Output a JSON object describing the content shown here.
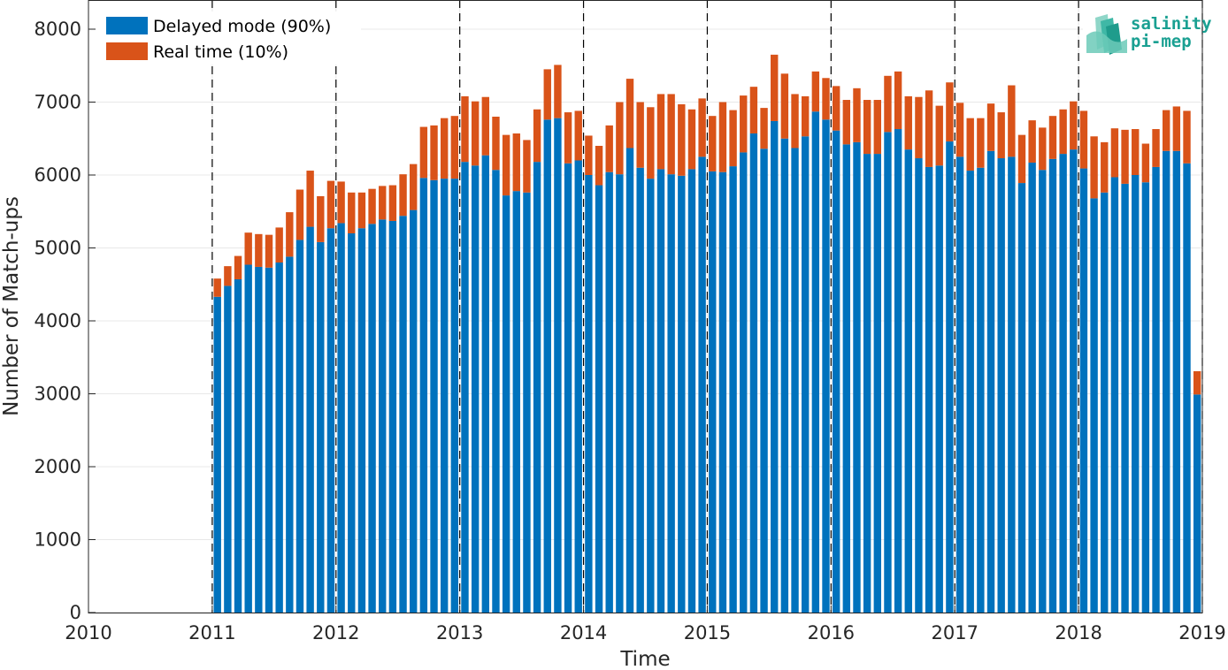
{
  "chart_data": {
    "type": "bar",
    "stacked": true,
    "title": "",
    "xlabel": "Time",
    "ylabel": "Number of Match-ups",
    "xlim": [
      "2010-01",
      "2019-01"
    ],
    "ylim": [
      0,
      8400
    ],
    "x_ticks": [
      "2010",
      "2011",
      "2012",
      "2013",
      "2014",
      "2015",
      "2016",
      "2017",
      "2018",
      "2019"
    ],
    "y_ticks": [
      "0",
      "1000",
      "2000",
      "3000",
      "4000",
      "5000",
      "6000",
      "7000",
      "8000"
    ],
    "grid": true,
    "year_separators": "dashed vertical lines at each January, 2011-2019",
    "legend_position": "top-left",
    "months": [
      "2011-01",
      "2011-02",
      "2011-03",
      "2011-04",
      "2011-05",
      "2011-06",
      "2011-07",
      "2011-08",
      "2011-09",
      "2011-10",
      "2011-11",
      "2011-12",
      "2012-01",
      "2012-02",
      "2012-03",
      "2012-04",
      "2012-05",
      "2012-06",
      "2012-07",
      "2012-08",
      "2012-09",
      "2012-10",
      "2012-11",
      "2012-12",
      "2013-01",
      "2013-02",
      "2013-03",
      "2013-04",
      "2013-05",
      "2013-06",
      "2013-07",
      "2013-08",
      "2013-09",
      "2013-10",
      "2013-11",
      "2013-12",
      "2014-01",
      "2014-02",
      "2014-03",
      "2014-04",
      "2014-05",
      "2014-06",
      "2014-07",
      "2014-08",
      "2014-09",
      "2014-10",
      "2014-11",
      "2014-12",
      "2015-01",
      "2015-02",
      "2015-03",
      "2015-04",
      "2015-05",
      "2015-06",
      "2015-07",
      "2015-08",
      "2015-09",
      "2015-10",
      "2015-11",
      "2015-12",
      "2016-01",
      "2016-02",
      "2016-03",
      "2016-04",
      "2016-05",
      "2016-06",
      "2016-07",
      "2016-08",
      "2016-09",
      "2016-10",
      "2016-11",
      "2016-12",
      "2017-01",
      "2017-02",
      "2017-03",
      "2017-04",
      "2017-05",
      "2017-06",
      "2017-07",
      "2017-08",
      "2017-09",
      "2017-10",
      "2017-11",
      "2017-12",
      "2018-01",
      "2018-02",
      "2018-03",
      "2018-04",
      "2018-05",
      "2018-06",
      "2018-07",
      "2018-08",
      "2018-09",
      "2018-10",
      "2018-11",
      "2018-12"
    ],
    "series": [
      {
        "name": "Delayed mode (90%)",
        "color": "#0072BD",
        "values": [
          4330,
          4480,
          4570,
          4770,
          4740,
          4730,
          4800,
          4880,
          5110,
          5290,
          5080,
          5270,
          5340,
          5200,
          5270,
          5330,
          5390,
          5370,
          5440,
          5520,
          5960,
          5930,
          5950,
          5950,
          6180,
          6130,
          6270,
          6070,
          5720,
          5780,
          5760,
          6180,
          6760,
          6780,
          6160,
          6200,
          6000,
          5860,
          6040,
          6010,
          6370,
          6100,
          5950,
          6080,
          6010,
          5990,
          6080,
          6250,
          6050,
          6040,
          6120,
          6310,
          6570,
          6360,
          6740,
          6500,
          6370,
          6530,
          6870,
          6760,
          6610,
          6420,
          6450,
          6290,
          6290,
          6590,
          6630,
          6350,
          6230,
          6110,
          6130,
          6460,
          6250,
          6060,
          6100,
          6330,
          6230,
          6250,
          5890,
          6170,
          6070,
          6220,
          6290,
          6350,
          6090,
          5680,
          5760,
          5970,
          5880,
          6000,
          5900,
          6110,
          6330,
          6330,
          6160,
          2990
        ]
      },
      {
        "name": "Real time (10%)",
        "color": "#D95319",
        "values": [
          250,
          270,
          320,
          440,
          450,
          450,
          480,
          610,
          690,
          770,
          630,
          650,
          570,
          560,
          490,
          480,
          460,
          490,
          570,
          630,
          700,
          750,
          830,
          860,
          900,
          880,
          800,
          730,
          830,
          790,
          720,
          720,
          690,
          730,
          700,
          680,
          540,
          540,
          640,
          990,
          950,
          900,
          980,
          1030,
          1100,
          980,
          820,
          800,
          760,
          960,
          770,
          780,
          640,
          560,
          910,
          890,
          740,
          550,
          550,
          570,
          610,
          610,
          740,
          740,
          740,
          770,
          790,
          730,
          840,
          1050,
          820,
          810,
          740,
          720,
          680,
          650,
          630,
          980,
          660,
          580,
          580,
          590,
          610,
          660,
          790,
          850,
          690,
          670,
          740,
          630,
          530,
          520,
          560,
          610,
          720,
          320
        ]
      }
    ]
  },
  "logo": {
    "line1": "salinity",
    "line2": "pi-mep"
  }
}
